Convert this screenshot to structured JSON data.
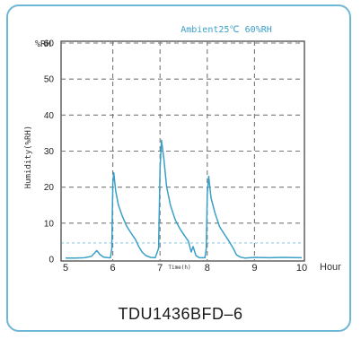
{
  "chart_data": {
    "type": "line",
    "legend_text": "Ambient25℃  60%RH",
    "legend_color": "#3aa0c8",
    "y_unit_label": "%RH",
    "ylabel": "Humidity(%RH)",
    "x_unit_label": "Hour",
    "x_inner_label": "Time(h)",
    "ylim": [
      0,
      60
    ],
    "xlim": [
      5,
      10
    ],
    "x_ticks": [
      5,
      6,
      7,
      8,
      9,
      10
    ],
    "y_ticks": [
      0,
      10,
      20,
      30,
      40,
      50,
      60
    ],
    "grid": true,
    "line_color": "#3aa0c8",
    "series": [
      {
        "points": [
          [
            5.0,
            0.3
          ],
          [
            5.2,
            0.3
          ],
          [
            5.4,
            0.4
          ],
          [
            5.55,
            0.8
          ],
          [
            5.62,
            1.8
          ],
          [
            5.66,
            2.4
          ],
          [
            5.72,
            1.4
          ],
          [
            5.8,
            0.6
          ],
          [
            5.9,
            0.4
          ],
          [
            5.95,
            0.4
          ],
          [
            5.98,
            3
          ],
          [
            6.0,
            21
          ],
          [
            6.02,
            24
          ],
          [
            6.06,
            19
          ],
          [
            6.12,
            15
          ],
          [
            6.2,
            12
          ],
          [
            6.3,
            9
          ],
          [
            6.4,
            7
          ],
          [
            6.48,
            5.5
          ],
          [
            6.55,
            3.5
          ],
          [
            6.62,
            2
          ],
          [
            6.7,
            1
          ],
          [
            6.8,
            0.5
          ],
          [
            6.9,
            0.4
          ],
          [
            6.97,
            3
          ],
          [
            7.0,
            25
          ],
          [
            7.03,
            33
          ],
          [
            7.08,
            28
          ],
          [
            7.14,
            20
          ],
          [
            7.22,
            15
          ],
          [
            7.32,
            11
          ],
          [
            7.42,
            8.5
          ],
          [
            7.52,
            6.5
          ],
          [
            7.6,
            5
          ],
          [
            7.66,
            2
          ],
          [
            7.7,
            3.5
          ],
          [
            7.76,
            1
          ],
          [
            7.83,
            0.4
          ],
          [
            7.95,
            0.4
          ],
          [
            7.98,
            3
          ],
          [
            8.0,
            18
          ],
          [
            8.03,
            23
          ],
          [
            8.08,
            17
          ],
          [
            8.16,
            13
          ],
          [
            8.26,
            9
          ],
          [
            8.36,
            7
          ],
          [
            8.46,
            5
          ],
          [
            8.55,
            3
          ],
          [
            8.62,
            1.2
          ],
          [
            8.7,
            0.6
          ],
          [
            8.8,
            0.3
          ],
          [
            9.0,
            0.5
          ],
          [
            9.3,
            0.4
          ],
          [
            9.6,
            0.5
          ],
          [
            10.0,
            0.4
          ]
        ]
      }
    ],
    "dashed_reference_y": 4.5
  },
  "caption": "TDU1436BFD–6"
}
